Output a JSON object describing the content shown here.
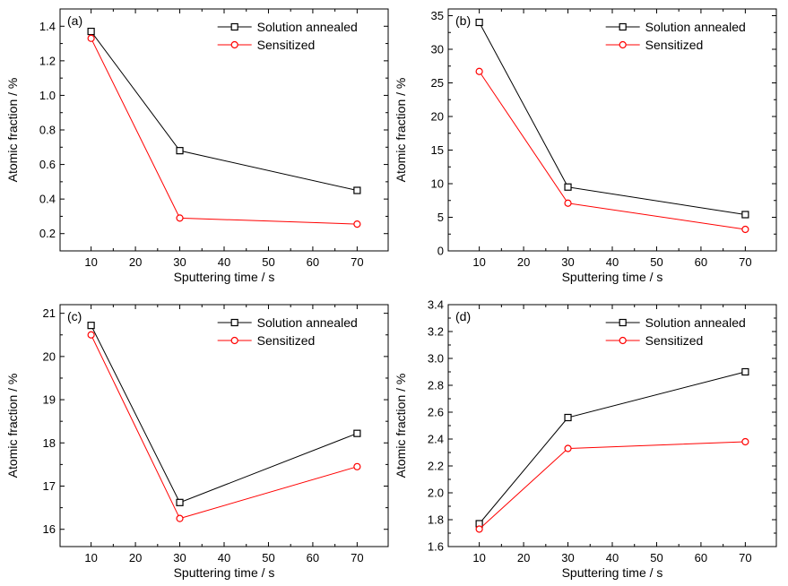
{
  "chart_data": [
    {
      "type": "line",
      "panel_label": "(a)",
      "x": [
        10,
        30,
        70
      ],
      "xlim": [
        3,
        77
      ],
      "xticks": [
        "10",
        "20",
        "30",
        "40",
        "50",
        "60",
        "70"
      ],
      "xlabel": "Sputtering time / s",
      "ylim": [
        0.1,
        1.5
      ],
      "yticks": [
        "0.2",
        "0.4",
        "0.6",
        "0.8",
        "1.0",
        "1.2",
        "1.4"
      ],
      "ylabel": "Atomic fraction / %",
      "legend_position": "top-right",
      "series": [
        {
          "name": "Solution annealed",
          "values": [
            1.37,
            0.68,
            0.45
          ],
          "color": "#000000",
          "marker": "square"
        },
        {
          "name": "Sensitized",
          "values": [
            1.33,
            0.29,
            0.255
          ],
          "color": "#ff0000",
          "marker": "circle"
        }
      ]
    },
    {
      "type": "line",
      "panel_label": "(b)",
      "x": [
        10,
        30,
        70
      ],
      "xlim": [
        3,
        77
      ],
      "xticks": [
        "10",
        "20",
        "30",
        "40",
        "50",
        "60",
        "70"
      ],
      "xlabel": "Sputtering time / s",
      "ylim": [
        0,
        36
      ],
      "yticks": [
        "0",
        "5",
        "10",
        "15",
        "20",
        "25",
        "30",
        "35"
      ],
      "ylabel": "Atomic fraction / %",
      "legend_position": "top-right",
      "series": [
        {
          "name": "Solution annealed",
          "values": [
            34.0,
            9.5,
            5.4
          ],
          "color": "#000000",
          "marker": "square"
        },
        {
          "name": "Sensitized",
          "values": [
            26.7,
            7.1,
            3.2
          ],
          "color": "#ff0000",
          "marker": "circle"
        }
      ]
    },
    {
      "type": "line",
      "panel_label": "(c)",
      "x": [
        10,
        30,
        70
      ],
      "xlim": [
        3,
        77
      ],
      "xticks": [
        "10",
        "20",
        "30",
        "40",
        "50",
        "60",
        "70"
      ],
      "xlabel": "Sputtering time / s",
      "ylim": [
        15.6,
        21.2
      ],
      "yticks": [
        "16",
        "17",
        "18",
        "19",
        "20",
        "21"
      ],
      "ylabel": "Atomic fraction / %",
      "legend_position": "top-right",
      "series": [
        {
          "name": "Solution annealed",
          "values": [
            20.72,
            16.62,
            18.22
          ],
          "color": "#000000",
          "marker": "square"
        },
        {
          "name": "Sensitized",
          "values": [
            20.5,
            16.25,
            17.45
          ],
          "color": "#ff0000",
          "marker": "circle"
        }
      ]
    },
    {
      "type": "line",
      "panel_label": "(d)",
      "x": [
        10,
        30,
        70
      ],
      "xlim": [
        3,
        77
      ],
      "xticks": [
        "10",
        "20",
        "30",
        "40",
        "50",
        "60",
        "70"
      ],
      "xlabel": "Sputtering time / s",
      "ylim": [
        1.6,
        3.4
      ],
      "yticks": [
        "1.6",
        "1.8",
        "2.0",
        "2.2",
        "2.4",
        "2.6",
        "2.8",
        "3.0",
        "3.2",
        "3.4"
      ],
      "ylabel": "Atomic fraction / %",
      "legend_position": "top-right",
      "series": [
        {
          "name": "Solution annealed",
          "values": [
            1.77,
            2.56,
            2.9
          ],
          "color": "#000000",
          "marker": "square"
        },
        {
          "name": "Sensitized",
          "values": [
            1.73,
            2.33,
            2.38
          ],
          "color": "#ff0000",
          "marker": "circle"
        }
      ]
    }
  ]
}
